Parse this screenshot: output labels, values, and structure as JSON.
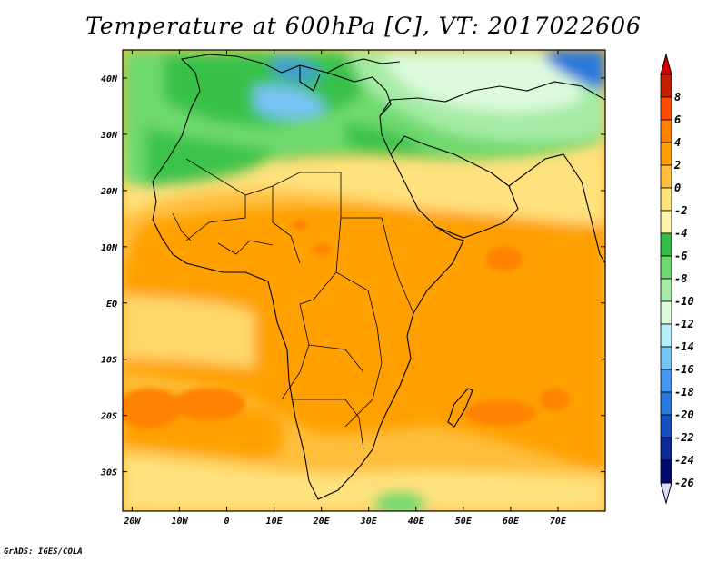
{
  "title": "Temperature at 600hPa [C], VT: 2017022606",
  "credit": "GrADS: IGES/COLA",
  "map": {
    "lon_range": [
      -22,
      80
    ],
    "lat_range": [
      -37,
      45
    ],
    "lat_ticks": [
      {
        "value": 40,
        "label": "40N"
      },
      {
        "value": 30,
        "label": "30N"
      },
      {
        "value": 20,
        "label": "20N"
      },
      {
        "value": 10,
        "label": "10N"
      },
      {
        "value": 0,
        "label": "EQ"
      },
      {
        "value": -10,
        "label": "10S"
      },
      {
        "value": -20,
        "label": "20S"
      },
      {
        "value": -30,
        "label": "30S"
      }
    ],
    "lon_ticks": [
      {
        "value": -20,
        "label": "20W"
      },
      {
        "value": -10,
        "label": "10W"
      },
      {
        "value": 0,
        "label": "0"
      },
      {
        "value": 10,
        "label": "10E"
      },
      {
        "value": 20,
        "label": "20E"
      },
      {
        "value": 30,
        "label": "30E"
      },
      {
        "value": 40,
        "label": "40E"
      },
      {
        "value": 50,
        "label": "50E"
      },
      {
        "value": 60,
        "label": "60E"
      },
      {
        "value": 70,
        "label": "70E"
      }
    ]
  },
  "colorbar": {
    "levels": [
      {
        "label": "8",
        "color": "#c81e00"
      },
      {
        "label": "6",
        "color": "#ff4b00"
      },
      {
        "label": "4",
        "color": "#ff8200"
      },
      {
        "label": "2",
        "color": "#ffa000"
      },
      {
        "label": "0",
        "color": "#ffbe3c"
      },
      {
        "label": "-2",
        "color": "#ffe17d"
      },
      {
        "label": "-4",
        "color": "#fff5aa"
      },
      {
        "label": "-6",
        "color": "#32be46"
      },
      {
        "label": "-8",
        "color": "#6ed96e"
      },
      {
        "label": "-10",
        "color": "#a5eba5"
      },
      {
        "label": "-12",
        "color": "#dcfadc"
      },
      {
        "label": "-14",
        "color": "#b4f0fa"
      },
      {
        "label": "-16",
        "color": "#78c3f5"
      },
      {
        "label": "-18",
        "color": "#4696f0"
      },
      {
        "label": "-20",
        "color": "#2878dc"
      },
      {
        "label": "-22",
        "color": "#1450c3"
      },
      {
        "label": "-24",
        "color": "#0a2896"
      },
      {
        "label": "-26",
        "color": "#000a6e"
      }
    ],
    "top_color": "#d20000",
    "bottom_color": "#dcdcff"
  }
}
